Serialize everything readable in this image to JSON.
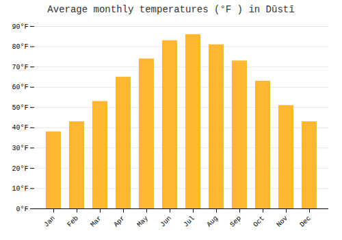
{
  "chart_data": {
    "type": "bar",
    "title": "Average monthly temperatures (°F ) in Dūstī",
    "categories": [
      "Jan",
      "Feb",
      "Mar",
      "Apr",
      "May",
      "Jun",
      "Jul",
      "Aug",
      "Sep",
      "Oct",
      "Nov",
      "Dec"
    ],
    "values": [
      38,
      43,
      53,
      65,
      74,
      83,
      86,
      81,
      73,
      63,
      51,
      43
    ],
    "color": "#FFB732",
    "ylim": [
      0,
      90
    ],
    "yticks": [
      {
        "value": 0,
        "label": "0°F"
      },
      {
        "value": 10,
        "label": "10°F"
      },
      {
        "value": 20,
        "label": "20°F"
      },
      {
        "value": 30,
        "label": "30°F"
      },
      {
        "value": 40,
        "label": "40°F"
      },
      {
        "value": 50,
        "label": "50°F"
      },
      {
        "value": 60,
        "label": "60°F"
      },
      {
        "value": 70,
        "label": "70°F"
      },
      {
        "value": 80,
        "label": "80°F"
      },
      {
        "value": 90,
        "label": "90°F"
      }
    ],
    "grid": true
  }
}
